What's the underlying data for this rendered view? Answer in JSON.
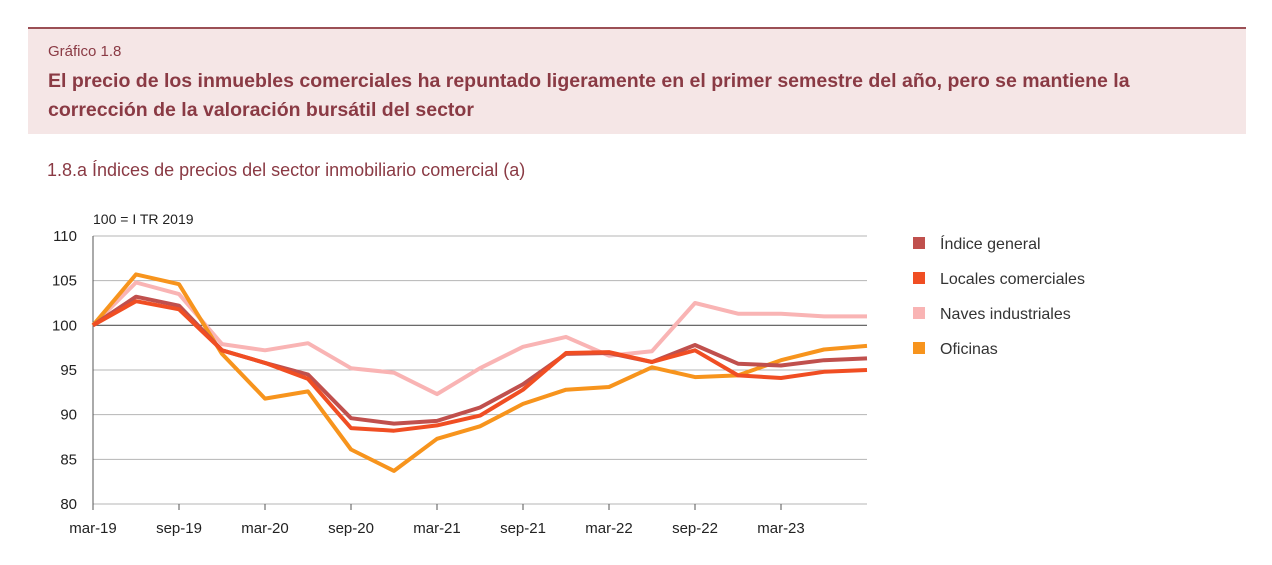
{
  "header": {
    "label": "Gráfico 1.8",
    "title": "El precio de los inmuebles comerciales ha repuntado ligeramente en el primer semestre del año, pero se mantiene la corrección de la valoración bursátil del sector"
  },
  "subtitle": "1.8.a  Índices de precios del sector inmobiliario comercial (a)",
  "chart_data": {
    "type": "line",
    "unit_label": "100 = I TR 2019",
    "title": "",
    "xlabel": "",
    "ylabel": "",
    "ylim": [
      80,
      110
    ],
    "yticks": [
      80,
      85,
      90,
      95,
      100,
      105,
      110
    ],
    "x": [
      "2019-Q1",
      "2019-Q2",
      "2019-Q3",
      "2019-Q4",
      "2020-Q1",
      "2020-Q2",
      "2020-Q3",
      "2020-Q4",
      "2021-Q1",
      "2021-Q2",
      "2021-Q3",
      "2021-Q4",
      "2022-Q1",
      "2022-Q2",
      "2022-Q3",
      "2022-Q4",
      "2023-Q1",
      "2023-Q2",
      "2023-Q3"
    ],
    "x_tick_labels": [
      "mar-19",
      "sep-19",
      "mar-20",
      "sep-20",
      "mar-21",
      "sep-21",
      "mar-22",
      "sep-22",
      "mar-23"
    ],
    "grid": "horizontal",
    "legend": "right",
    "series": [
      {
        "name": "Índice general",
        "color": "#c0504d",
        "values": [
          100.0,
          103.2,
          102.2,
          97.2,
          95.8,
          94.5,
          89.6,
          89.0,
          89.3,
          90.8,
          93.4,
          96.8,
          96.9,
          95.9,
          97.8,
          95.7,
          95.5,
          96.1,
          96.3
        ]
      },
      {
        "name": "Locales comerciales",
        "color": "#f04e23",
        "values": [
          100.0,
          102.7,
          101.8,
          97.2,
          95.8,
          94.0,
          88.5,
          88.2,
          88.8,
          89.9,
          92.8,
          96.9,
          97.0,
          95.9,
          97.2,
          94.4,
          94.1,
          94.8,
          95.0
        ]
      },
      {
        "name": "Naves industriales",
        "color": "#f9b4b4",
        "values": [
          100.0,
          104.8,
          103.5,
          97.9,
          97.2,
          98.0,
          95.2,
          94.7,
          92.3,
          95.2,
          97.6,
          98.7,
          96.6,
          97.1,
          102.5,
          101.3,
          101.3,
          101.0,
          101.0
        ]
      },
      {
        "name": "Oficinas",
        "color": "#f7941d",
        "values": [
          100.0,
          105.7,
          104.6,
          96.8,
          91.8,
          92.6,
          86.1,
          83.7,
          87.3,
          88.7,
          91.2,
          92.8,
          93.1,
          95.3,
          94.2,
          94.4,
          96.1,
          97.3,
          97.7
        ]
      }
    ]
  }
}
